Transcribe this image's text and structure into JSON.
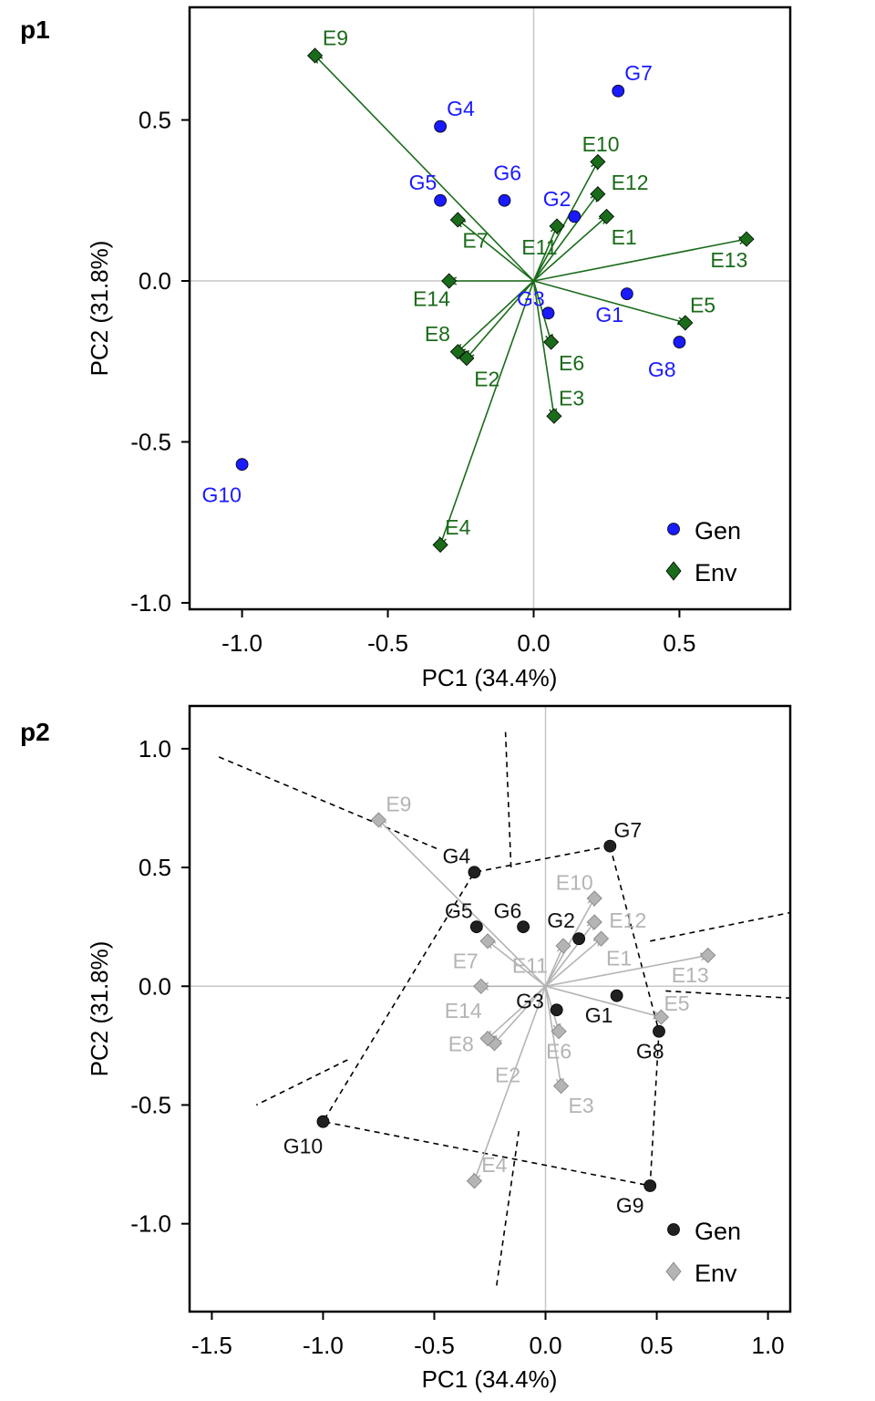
{
  "chart_data": [
    {
      "id": "p1",
      "type": "scatter",
      "panel_tag": "p1",
      "xlabel": "PC1 (34.4%)",
      "ylabel": "PC2 (31.8%)",
      "xlim": [
        -1.18,
        0.88
      ],
      "ylim": [
        -1.02,
        0.85
      ],
      "xticks": [
        -1.0,
        -0.5,
        0.0,
        0.5
      ],
      "xtick_labels": [
        "-1.0",
        "-0.5",
        "0.0",
        "0.5"
      ],
      "yticks": [
        -1.0,
        -0.5,
        0.0,
        0.5
      ],
      "ytick_labels": [
        "-1.0",
        "-0.5",
        "0.0",
        "0.5"
      ],
      "reference_lines": [
        0,
        0
      ],
      "env_vectors": true,
      "colors": {
        "gen": "#1a1aff",
        "env": "#1a6b1a",
        "env_line": "#1a6b1a",
        "ref": "#c8c8c8"
      },
      "legend": {
        "placement": "bottom-right",
        "entries": [
          "Gen",
          "Env"
        ]
      },
      "series": [
        {
          "name": "Gen",
          "marker": "circle",
          "points": [
            {
              "label": "G1",
              "x": 0.32,
              "y": -0.04,
              "lx": 0.26,
              "ly": -0.11
            },
            {
              "label": "G2",
              "x": 0.14,
              "y": 0.2,
              "lx": 0.08,
              "ly": 0.25
            },
            {
              "label": "G3",
              "x": 0.05,
              "y": -0.1,
              "lx": -0.01,
              "ly": -0.06
            },
            {
              "label": "G4",
              "x": -0.32,
              "y": 0.48,
              "lx": -0.25,
              "ly": 0.53
            },
            {
              "label": "G5",
              "x": -0.32,
              "y": 0.25,
              "lx": -0.38,
              "ly": 0.3
            },
            {
              "label": "G6",
              "x": -0.1,
              "y": 0.25,
              "lx": -0.09,
              "ly": 0.33
            },
            {
              "label": "G7",
              "x": 0.29,
              "y": 0.59,
              "lx": 0.36,
              "ly": 0.64
            },
            {
              "label": "G8",
              "x": 0.5,
              "y": -0.19,
              "lx": 0.44,
              "ly": -0.28
            },
            {
              "label": "G10",
              "x": -1.0,
              "y": -0.57,
              "lx": -1.07,
              "ly": -0.67
            }
          ]
        },
        {
          "name": "Env",
          "marker": "diamond",
          "points": [
            {
              "label": "E1",
              "x": 0.25,
              "y": 0.2,
              "lx": 0.31,
              "ly": 0.13
            },
            {
              "label": "E2",
              "x": -0.23,
              "y": -0.24,
              "lx": -0.16,
              "ly": -0.31
            },
            {
              "label": "E3",
              "x": 0.07,
              "y": -0.42,
              "lx": 0.13,
              "ly": -0.37
            },
            {
              "label": "E4",
              "x": -0.32,
              "y": -0.82,
              "lx": -0.26,
              "ly": -0.77
            },
            {
              "label": "E5",
              "x": 0.52,
              "y": -0.13,
              "lx": 0.58,
              "ly": -0.08
            },
            {
              "label": "E6",
              "x": 0.06,
              "y": -0.19,
              "lx": 0.13,
              "ly": -0.26
            },
            {
              "label": "E7",
              "x": -0.26,
              "y": 0.19,
              "lx": -0.2,
              "ly": 0.12
            },
            {
              "label": "E8",
              "x": -0.26,
              "y": -0.22,
              "lx": -0.33,
              "ly": -0.17
            },
            {
              "label": "E9",
              "x": -0.75,
              "y": 0.7,
              "lx": -0.68,
              "ly": 0.75
            },
            {
              "label": "E10",
              "x": 0.22,
              "y": 0.37,
              "lx": 0.23,
              "ly": 0.42
            },
            {
              "label": "E11",
              "x": 0.08,
              "y": 0.17,
              "lx": 0.02,
              "ly": 0.1
            },
            {
              "label": "E12",
              "x": 0.22,
              "y": 0.27,
              "lx": 0.33,
              "ly": 0.3
            },
            {
              "label": "E13",
              "x": 0.73,
              "y": 0.13,
              "lx": 0.67,
              "ly": 0.06
            },
            {
              "label": "E14",
              "x": -0.29,
              "y": 0.0,
              "lx": -0.35,
              "ly": -0.06
            }
          ]
        }
      ]
    },
    {
      "id": "p2",
      "type": "scatter",
      "panel_tag": "p2",
      "xlabel": "PC1 (34.4%)",
      "ylabel": "PC2 (31.8%)",
      "xlim": [
        -1.6,
        1.1
      ],
      "ylim": [
        -1.37,
        1.18
      ],
      "xticks": [
        -1.5,
        -1.0,
        -0.5,
        0.0,
        0.5,
        1.0
      ],
      "xtick_labels": [
        "-1.5",
        "-1.0",
        "-0.5",
        "0.0",
        "0.5",
        "1.0"
      ],
      "yticks": [
        -1.0,
        -0.5,
        0.0,
        0.5,
        1.0
      ],
      "ytick_labels": [
        "-1.0",
        "-0.5",
        "0.0",
        "0.5",
        "1.0"
      ],
      "reference_lines": [
        0,
        0
      ],
      "env_vectors": true,
      "colors": {
        "gen": "#202020",
        "env": "#b4b4b4",
        "env_line": "#b4b4b4",
        "ref": "#c8c8c8",
        "hull": "#000000"
      },
      "legend": {
        "placement": "bottom-right",
        "entries": [
          "Gen",
          "Env"
        ]
      },
      "hull_order": [
        "G7",
        "G8",
        "G9",
        "G10",
        "G4"
      ],
      "sector_lines": [
        {
          "x1": -0.155,
          "y1": 0.5,
          "x2": -0.18,
          "y2": 1.07
        },
        {
          "x1": -0.49,
          "y1": 0.58,
          "x2": -1.48,
          "y2": 0.97
        },
        {
          "x1": -0.89,
          "y1": -0.31,
          "x2": -1.3,
          "y2": -0.5
        },
        {
          "x1": -0.12,
          "y1": -0.61,
          "x2": -0.22,
          "y2": -1.26
        },
        {
          "x1": 0.54,
          "y1": -0.02,
          "x2": 1.1,
          "y2": -0.05
        },
        {
          "x1": 0.47,
          "y1": 0.19,
          "x2": 1.1,
          "y2": 0.31
        }
      ],
      "series": [
        {
          "name": "Gen",
          "marker": "circle",
          "points": [
            {
              "label": "G1",
              "x": 0.32,
              "y": -0.04,
              "lx": 0.24,
              "ly": -0.13
            },
            {
              "label": "G2",
              "x": 0.15,
              "y": 0.2,
              "lx": 0.07,
              "ly": 0.27
            },
            {
              "label": "G3",
              "x": 0.05,
              "y": -0.1,
              "lx": -0.07,
              "ly": -0.07
            },
            {
              "label": "G4",
              "x": -0.32,
              "y": 0.48,
              "lx": -0.4,
              "ly": 0.54
            },
            {
              "label": "G5",
              "x": -0.31,
              "y": 0.25,
              "lx": -0.39,
              "ly": 0.31
            },
            {
              "label": "G6",
              "x": -0.1,
              "y": 0.25,
              "lx": -0.17,
              "ly": 0.31
            },
            {
              "label": "G7",
              "x": 0.29,
              "y": 0.59,
              "lx": 0.37,
              "ly": 0.65
            },
            {
              "label": "G8",
              "x": 0.51,
              "y": -0.19,
              "lx": 0.47,
              "ly": -0.28
            },
            {
              "label": "G9",
              "x": 0.47,
              "y": -0.84,
              "lx": 0.38,
              "ly": -0.93
            },
            {
              "label": "G10",
              "x": -1.0,
              "y": -0.57,
              "lx": -1.09,
              "ly": -0.68
            }
          ]
        },
        {
          "name": "Env",
          "marker": "diamond",
          "points": [
            {
              "label": "E1",
              "x": 0.25,
              "y": 0.2,
              "lx": 0.33,
              "ly": 0.11
            },
            {
              "label": "E2",
              "x": -0.23,
              "y": -0.24,
              "lx": -0.17,
              "ly": -0.38
            },
            {
              "label": "E3",
              "x": 0.07,
              "y": -0.42,
              "lx": 0.16,
              "ly": -0.51
            },
            {
              "label": "E4",
              "x": -0.32,
              "y": -0.82,
              "lx": -0.23,
              "ly": -0.76
            },
            {
              "label": "E5",
              "x": 0.52,
              "y": -0.13,
              "lx": 0.59,
              "ly": -0.08
            },
            {
              "label": "E6",
              "x": 0.06,
              "y": -0.19,
              "lx": 0.06,
              "ly": -0.28
            },
            {
              "label": "E7",
              "x": -0.26,
              "y": 0.19,
              "lx": -0.36,
              "ly": 0.1
            },
            {
              "label": "E8",
              "x": -0.26,
              "y": -0.22,
              "lx": -0.38,
              "ly": -0.25
            },
            {
              "label": "E9",
              "x": -0.75,
              "y": 0.7,
              "lx": -0.66,
              "ly": 0.76
            },
            {
              "label": "E10",
              "x": 0.22,
              "y": 0.37,
              "lx": 0.13,
              "ly": 0.43
            },
            {
              "label": "E11",
              "x": 0.08,
              "y": 0.17,
              "lx": -0.07,
              "ly": 0.08
            },
            {
              "label": "E12",
              "x": 0.22,
              "y": 0.27,
              "lx": 0.37,
              "ly": 0.27
            },
            {
              "label": "E13",
              "x": 0.73,
              "y": 0.13,
              "lx": 0.65,
              "ly": 0.04
            },
            {
              "label": "E14",
              "x": -0.29,
              "y": 0.0,
              "lx": -0.37,
              "ly": -0.11
            }
          ]
        }
      ]
    }
  ]
}
